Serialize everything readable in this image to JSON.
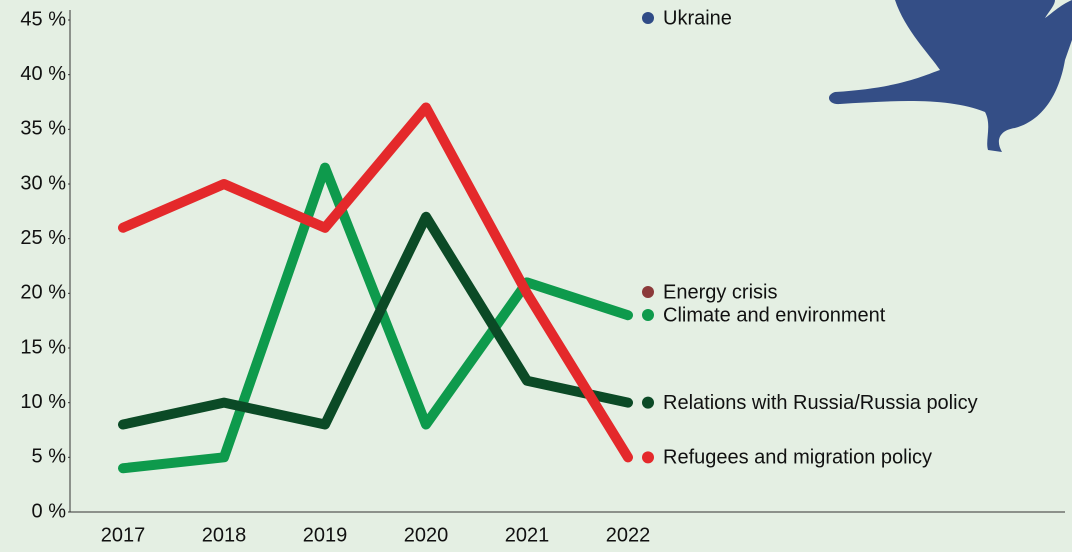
{
  "chart_data": {
    "type": "line",
    "x": [
      "2017",
      "2018",
      "2019",
      "2020",
      "2021",
      "2022"
    ],
    "ylim": [
      0,
      45
    ],
    "yticks": [
      {
        "value": 0,
        "label": "0 %"
      },
      {
        "value": 5,
        "label": "5 %"
      },
      {
        "value": 10,
        "label": "10 %"
      },
      {
        "value": 15,
        "label": "15 %"
      },
      {
        "value": 20,
        "label": "20 %"
      },
      {
        "value": 25,
        "label": "25 %"
      },
      {
        "value": 30,
        "label": "30 %"
      },
      {
        "value": 35,
        "label": "35 %"
      },
      {
        "value": 40,
        "label": "40 %"
      },
      {
        "value": 45,
        "label": "45 %"
      }
    ],
    "series": [
      {
        "name": "Ukraine",
        "color": "#2f4b86",
        "values": [
          null,
          null,
          null,
          null,
          null,
          null
        ]
      },
      {
        "name": "Energy crisis",
        "color": "#8b3a3a",
        "values": [
          null,
          null,
          null,
          null,
          null,
          null
        ]
      },
      {
        "name": "Climate and environment",
        "color": "#0e9a4c",
        "values": [
          4,
          5,
          31.5,
          8,
          21,
          18
        ]
      },
      {
        "name": "Relations with Russia/Russia policy",
        "color": "#0b4a26",
        "values": [
          8,
          10,
          8,
          27,
          12,
          10
        ]
      },
      {
        "name": "Refugees and migration policy",
        "color": "#e4292b",
        "values": [
          26,
          30,
          26,
          37,
          20,
          5
        ]
      }
    ]
  }
}
